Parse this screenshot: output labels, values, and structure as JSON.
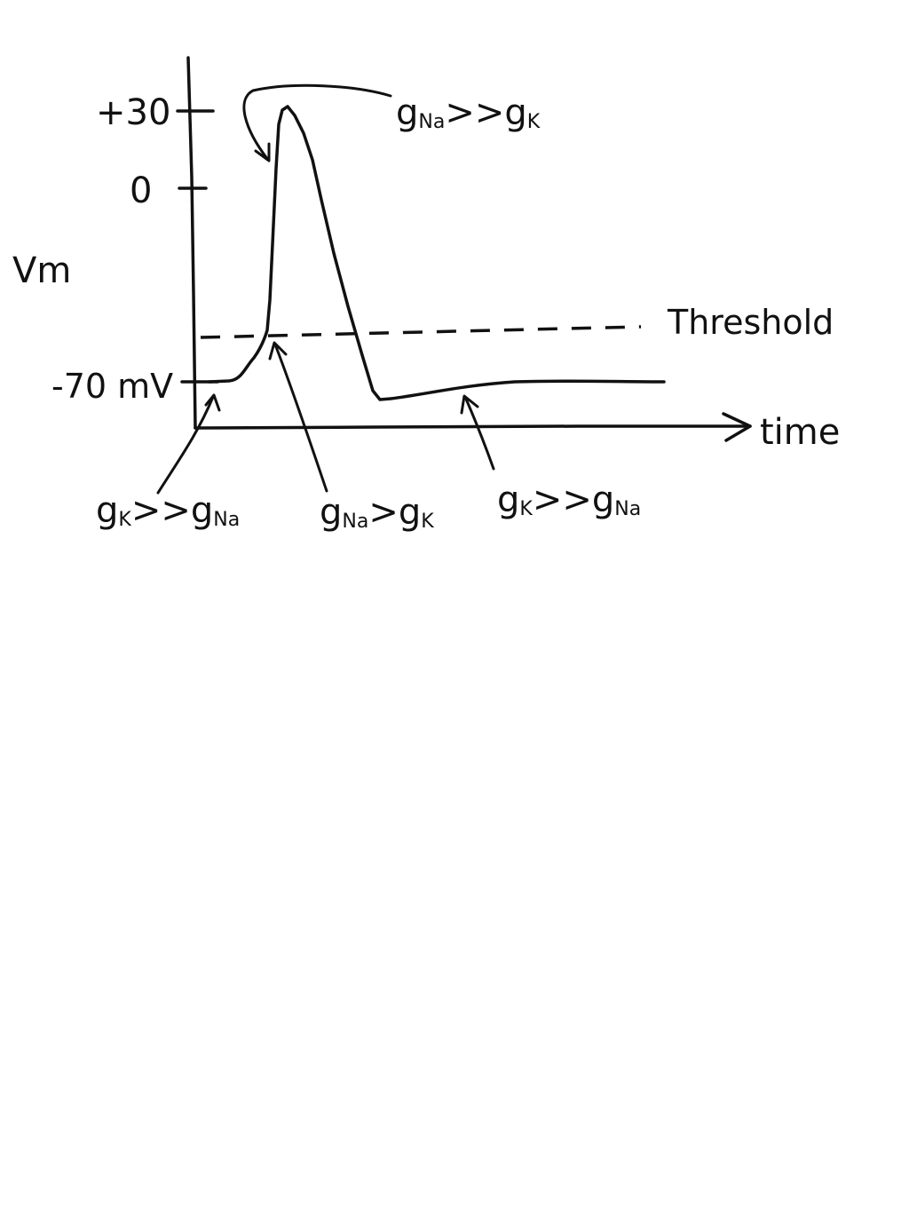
{
  "axes": {
    "y_label": "Vm",
    "x_label": "time",
    "ticks": [
      "+30",
      "0",
      "-70 mV"
    ]
  },
  "threshold_label": "Threshold",
  "annotations": {
    "rising_phase": {
      "g1": "g",
      "s1": "Na",
      "op": ">>",
      "g2": "g",
      "s2": "K"
    },
    "threshold_crossing": {
      "g1": "g",
      "s1": "Na",
      "op": ">",
      "g2": "g",
      "s2": "K"
    },
    "resting": {
      "g1": "g",
      "s1": "K",
      "op": ">>",
      "g2": "g",
      "s2": "Na"
    },
    "hyperpolarization": {
      "g1": "g",
      "s1": "K",
      "op": ">>",
      "g2": "g",
      "s2": "Na"
    }
  }
}
